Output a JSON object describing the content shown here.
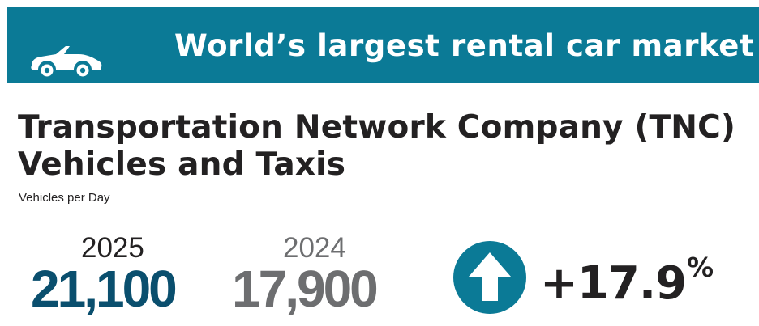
{
  "banner": {
    "title": "World’s largest rental car market",
    "icon": "convertible-car-icon",
    "background_color": "#0b7a96",
    "text_color": "#ffffff"
  },
  "headline": {
    "line1": "Transportation Network Company (TNC)",
    "line2": "Vehicles and Taxis",
    "subtitle": "Vehicles per Day"
  },
  "stats": {
    "current": {
      "year": "2025",
      "value": "21,100",
      "color": "#0a4f6e"
    },
    "previous": {
      "year": "2024",
      "value": "17,900",
      "color": "#6d6e70"
    },
    "change": {
      "icon": "up-arrow-circle-icon",
      "value": "+17.9",
      "unit": "%",
      "icon_color": "#0b7a96"
    }
  }
}
